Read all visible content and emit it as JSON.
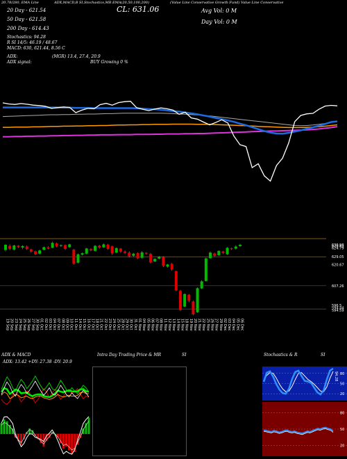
{
  "header": {
    "ticker_note": "(Value Line Conservative Growth Fund) Value Line Conservative",
    "indicators": "ADX,MACD,B SI,Stochastics,MR EMA(20,50,100,200) ",
    "close": "CL: 631.06",
    "avg_vol": "Avg Vol: 0 M",
    "day_vol": "Day Vol: 0 M",
    "date_label": "20.78/280, EMA Line",
    "day20": "20 Day - 621.54",
    "day50": "50 Day - 621.58",
    "day200": "200 Day - 614.43",
    "stochastics": "Stochastics: 94.28",
    "rsi": "R          SI 14/5: 46.19 / 48.67",
    "macd": "MACD: 630, 621.44, 8.56  C",
    "adx": "ADX:",
    "adx_values": "(MGR) 13.4, 27.4, 20.9",
    "adx_signal": "ADX signal:",
    "adx_signal_value": "BUY Growing 0 %"
  },
  "colors": {
    "price_line": "#ffffff",
    "ema20": "#1e6ae0",
    "ema50": "#aaaaaa",
    "ema100": "#ff9900",
    "ema200": "#dd33dd",
    "bull": "#00bb00",
    "bear": "#dd0000",
    "level": "#bb7700"
  },
  "price_axis": [
    "630.98",
    "628.83",
    "624.79",
    "629.05",
    "620.67",
    "607.26",
    "596.5",
    "594.44",
    "594.59"
  ],
  "dates": [
    "19 Sep",
    "20 Sep",
    "23 Sep",
    "24 Sep",
    "25 Sep",
    "26 Sep",
    "27 Sep",
    "30 Sep",
    "01 Oct",
    "02 Oct",
    "03 Oct",
    "04 Oct",
    "07 Oct",
    "08 Oct",
    "09 Oct",
    "10 Oct",
    "11 Oct",
    "14 Oct",
    "15 Oct",
    "16 Oct",
    "17 Oct",
    "18 Oct",
    "21 Oct",
    "22 Oct",
    "23 Oct",
    "24 Oct",
    "25 Oct",
    "28 Oct",
    "29 Oct",
    "30 Oct",
    "31 Oct",
    "01 Nov",
    "04 Nov",
    "05 Nov",
    "06 Nov",
    "07 Nov",
    "08 Nov",
    "11 Nov",
    "12 Nov",
    "13 Nov",
    "14 Nov",
    "15 Nov",
    "18 Nov",
    "19 Nov",
    "20 Nov",
    "21 Nov",
    "22 Nov",
    "25 Nov",
    "26 Nov",
    "27 Nov",
    "29 Nov",
    "02 Dec",
    "03 Dec",
    "04 Dec",
    "05 Dec",
    "06 Dec"
  ],
  "panels": {
    "adx_title": "ADX  & MACD",
    "adx_readout": "ADX: 13.42  +DY: 27.38  -DY: 20.9",
    "intraday_title": "Intra Day Trading Price  & MR",
    "intraday_si": "SI",
    "stoch_title": "Stochastics & R",
    "stoch_si": "SI",
    "stoch_ticks": [
      "80",
      "50",
      "20"
    ],
    "rsi_ticks": [
      "80",
      "50",
      "20"
    ],
    "stoch_value_label": "94.28"
  },
  "chart_data": {
    "type": "candlestick",
    "title": "",
    "close_line": [
      629.6,
      629.1,
      628.9,
      629.3,
      629.0,
      628.6,
      628.4,
      628.1,
      627.2,
      627.5,
      627.8,
      627.6,
      625.3,
      626.4,
      627.2,
      627.0,
      628.8,
      629.4,
      628.6,
      629.7,
      630.1,
      630.3,
      627.5,
      626.8,
      626.2,
      626.9,
      627.4,
      627.0,
      626.4,
      624.6,
      625.5,
      623.0,
      622.5,
      621.2,
      620.0,
      621.0,
      622.2,
      620.8,
      615.1,
      611.3,
      610.5,
      601.3,
      603.0,
      597.7,
      595.4,
      602.2,
      605.4,
      612.0,
      621.4,
      624.1,
      624.8,
      625.0,
      626.8,
      628.2,
      628.5,
      628.3
    ],
    "ema20": [
      627.6,
      627.6,
      627.6,
      627.6,
      627.6,
      627.6,
      627.6,
      627.6,
      627.6,
      627.6,
      627.5,
      627.5,
      627.4,
      627.4,
      627.4,
      627.3,
      627.3,
      627.3,
      627.3,
      627.3,
      627.3,
      627.3,
      627.2,
      627.1,
      626.9,
      626.8,
      626.6,
      626.3,
      626.0,
      625.8,
      625.4,
      625.0,
      624.6,
      624.1,
      623.6,
      623.0,
      622.5,
      621.9,
      621.3,
      620.5,
      619.8,
      619.0,
      618.1,
      617.3,
      616.6,
      616.2,
      616.1,
      616.5,
      617.0,
      617.6,
      618.3,
      618.9,
      619.6,
      620.4,
      621.2,
      621.5
    ],
    "ema50": [
      623.6,
      623.7,
      623.8,
      623.9,
      624.0,
      624.1,
      624.2,
      624.3,
      624.4,
      624.4,
      624.5,
      624.5,
      624.6,
      624.6,
      624.7,
      624.7,
      624.8,
      624.9,
      624.9,
      625.0,
      625.1,
      625.1,
      625.1,
      625.1,
      625.1,
      625.1,
      625.1,
      625.0,
      624.9,
      624.7,
      624.6,
      624.5,
      624.3,
      624.1,
      623.9,
      623.6,
      623.3,
      623.0,
      622.7,
      622.4,
      622.1,
      621.8,
      621.5,
      621.2,
      620.9,
      620.6,
      620.3,
      620.0,
      619.7,
      619.6,
      619.7,
      619.9,
      620.2,
      620.6,
      621.1,
      621.6
    ],
    "ema100": [
      618.9,
      618.9,
      619.0,
      619.0,
      619.0,
      619.1,
      619.1,
      619.2,
      619.3,
      619.3,
      619.4,
      619.4,
      619.5,
      619.5,
      619.6,
      619.6,
      619.7,
      619.7,
      619.8,
      619.9,
      619.9,
      620.0,
      620.0,
      620.1,
      620.1,
      620.2,
      620.2,
      620.2,
      620.3,
      620.3,
      620.3,
      620.3,
      620.2,
      620.2,
      620.2,
      620.1,
      620.0,
      619.9,
      619.8,
      619.7,
      619.6,
      619.5,
      619.3,
      619.2,
      619.1,
      619.0,
      618.9,
      618.8,
      618.8,
      618.8,
      618.9,
      619.0,
      619.2,
      619.4,
      619.7,
      620.0
    ],
    "ema200": [
      614.8,
      614.8,
      614.9,
      614.9,
      615.0,
      615.0,
      615.1,
      615.1,
      615.2,
      615.2,
      615.3,
      615.3,
      615.4,
      615.4,
      615.5,
      615.5,
      615.6,
      615.6,
      615.6,
      615.7,
      615.7,
      615.7,
      615.8,
      615.8,
      615.8,
      615.9,
      615.9,
      616.0,
      616.0,
      616.0,
      616.1,
      616.1,
      616.2,
      616.2,
      616.3,
      616.4,
      616.5,
      616.6,
      616.7,
      616.8,
      616.9,
      617.0,
      617.1,
      617.2,
      617.3,
      617.3,
      617.4,
      617.5,
      617.6,
      617.7,
      617.8,
      618.0,
      618.2,
      618.5,
      618.8,
      619.2
    ],
    "candles": [
      [
        623.8,
        626.2,
        623.1,
        626.5,
        1
      ],
      [
        625.7,
        624.3,
        623.7,
        626.4,
        0
      ],
      [
        624.0,
        625.9,
        623.5,
        626.2,
        1
      ],
      [
        625.8,
        625.2,
        624.7,
        626.1,
        0
      ],
      [
        624.9,
        625.6,
        624.2,
        626.0,
        1
      ],
      [
        625.4,
        624.2,
        623.8,
        625.9,
        0
      ],
      [
        624.1,
        623.0,
        622.5,
        624.4,
        0
      ],
      [
        623.2,
        621.8,
        621.4,
        623.5,
        0
      ],
      [
        622.1,
        623.6,
        621.7,
        624.0,
        1
      ],
      [
        623.9,
        625.1,
        623.6,
        625.4,
        1
      ],
      [
        625.0,
        624.6,
        624.1,
        625.5,
        0
      ],
      [
        624.8,
        627.1,
        624.6,
        627.6,
        1
      ],
      [
        626.9,
        625.4,
        625.0,
        627.2,
        0
      ],
      [
        625.6,
        626.0,
        625.2,
        626.4,
        1
      ],
      [
        626.1,
        624.3,
        623.8,
        626.4,
        0
      ],
      [
        625.1,
        626.4,
        624.7,
        626.7,
        1
      ],
      [
        624.0,
        617.5,
        617.1,
        624.3,
        0
      ],
      [
        617.9,
        621.8,
        617.6,
        622.2,
        1
      ],
      [
        621.6,
        622.3,
        621.2,
        622.7,
        1
      ],
      [
        622.1,
        624.5,
        621.8,
        624.8,
        1
      ],
      [
        624.2,
        623.6,
        623.2,
        624.6,
        0
      ],
      [
        623.4,
        625.7,
        623.1,
        626.1,
        1
      ],
      [
        625.8,
        624.9,
        624.4,
        626.2,
        0
      ],
      [
        625.0,
        626.4,
        624.7,
        626.9,
        1
      ],
      [
        626.3,
        624.3,
        623.9,
        626.6,
        0
      ],
      [
        625.5,
        622.2,
        621.6,
        625.8,
        0
      ],
      [
        622.6,
        624.7,
        622.3,
        625.0,
        1
      ],
      [
        624.5,
        623.0,
        622.4,
        624.7,
        0
      ],
      [
        623.1,
        622.4,
        621.9,
        623.6,
        0
      ],
      [
        622.6,
        620.9,
        620.4,
        623.2,
        0
      ],
      [
        621.1,
        622.1,
        620.7,
        622.4,
        1
      ],
      [
        622.4,
        620.0,
        619.6,
        622.7,
        0
      ],
      [
        620.2,
        622.7,
        619.8,
        623.3,
        1
      ],
      [
        622.5,
        622.1,
        621.6,
        622.8,
        0
      ],
      [
        622.0,
        618.1,
        617.5,
        622.4,
        0
      ],
      [
        618.5,
        619.7,
        618.1,
        620.0,
        1
      ],
      [
        619.8,
        620.7,
        619.4,
        621.0,
        1
      ],
      [
        620.6,
        616.4,
        615.9,
        620.9,
        0
      ],
      [
        616.1,
        617.1,
        615.6,
        617.4,
        1
      ],
      [
        617.4,
        614.8,
        614.2,
        617.8,
        0
      ],
      [
        614.0,
        605.1,
        604.7,
        614.2,
        0
      ],
      [
        604.9,
        596.0,
        595.5,
        605.3,
        0
      ],
      [
        597.6,
        603.4,
        597.2,
        603.8,
        1
      ],
      [
        603.1,
        600.3,
        599.6,
        603.4,
        0
      ],
      [
        600.0,
        594.0,
        593.6,
        600.3,
        0
      ],
      [
        595.0,
        606.1,
        594.7,
        606.5,
        1
      ],
      [
        606.0,
        609.3,
        605.7,
        609.8,
        1
      ],
      [
        609.4,
        619.9,
        609.2,
        620.3,
        1
      ],
      [
        620.0,
        622.6,
        619.6,
        623.2,
        1
      ],
      [
        622.2,
        621.1,
        620.6,
        622.6,
        0
      ],
      [
        621.4,
        623.4,
        621.1,
        623.6,
        1
      ],
      [
        623.1,
        622.4,
        621.9,
        623.4,
        0
      ],
      [
        621.8,
        624.8,
        621.5,
        625.2,
        1
      ],
      [
        624.6,
        624.2,
        623.8,
        624.9,
        0
      ],
      [
        624.4,
        625.4,
        624.0,
        626.0,
        1
      ],
      [
        625.6,
        626.2,
        625.2,
        626.6,
        1
      ]
    ],
    "levels": [
      629.05,
      620.67,
      607.26,
      596.5
    ],
    "ylim": [
      594.0,
      632.0
    ],
    "adx_lines": {
      "adx": [
        23,
        27,
        25,
        19,
        21,
        24,
        23,
        20,
        21,
        22,
        20,
        19,
        21,
        22,
        22,
        20,
        19,
        18,
        19,
        21,
        24,
        22,
        21,
        22,
        23,
        22,
        22,
        23,
        26,
        27,
        25,
        25
      ],
      "pdi": [
        30,
        38,
        45,
        40,
        32,
        28,
        36,
        42,
        38,
        31,
        35,
        40,
        46,
        40,
        34,
        29,
        33,
        38,
        31,
        29,
        34,
        41,
        36,
        30,
        27,
        32,
        28,
        25,
        30,
        35,
        32,
        27
      ],
      "mdi": [
        18,
        14,
        12,
        16,
        24,
        30,
        22,
        15,
        19,
        28,
        26,
        20,
        14,
        18,
        25,
        31,
        27,
        20,
        26,
        30,
        24,
        18,
        22,
        27,
        30,
        25,
        28,
        31,
        24,
        19,
        22,
        21
      ]
    },
    "macd_hist": [
      6,
      8,
      7,
      5,
      3,
      -2,
      -4,
      -6,
      -3,
      1,
      3,
      2,
      -1,
      -3,
      -5,
      -7,
      -4,
      -2,
      1,
      0,
      -2,
      -5,
      -8,
      -7,
      -9,
      -11,
      -10,
      -6,
      -2,
      3,
      6,
      9
    ],
    "stoch_k": [
      55,
      82,
      86,
      70,
      48,
      32,
      22,
      20,
      35,
      63,
      84,
      88,
      72,
      58,
      56,
      52,
      38,
      24,
      18,
      30,
      62,
      88,
      94
    ],
    "stoch_d": [
      60,
      74,
      82,
      80,
      66,
      48,
      34,
      26,
      28,
      42,
      62,
      80,
      82,
      72,
      62,
      56,
      48,
      38,
      28,
      26,
      40,
      66,
      86
    ],
    "rsi": [
      48,
      47,
      46,
      45,
      47,
      46,
      44,
      45,
      47,
      48,
      46,
      45,
      46,
      44,
      43,
      42,
      44,
      46,
      45,
      47,
      49,
      51,
      50,
      52,
      53,
      51,
      50,
      46
    ]
  }
}
